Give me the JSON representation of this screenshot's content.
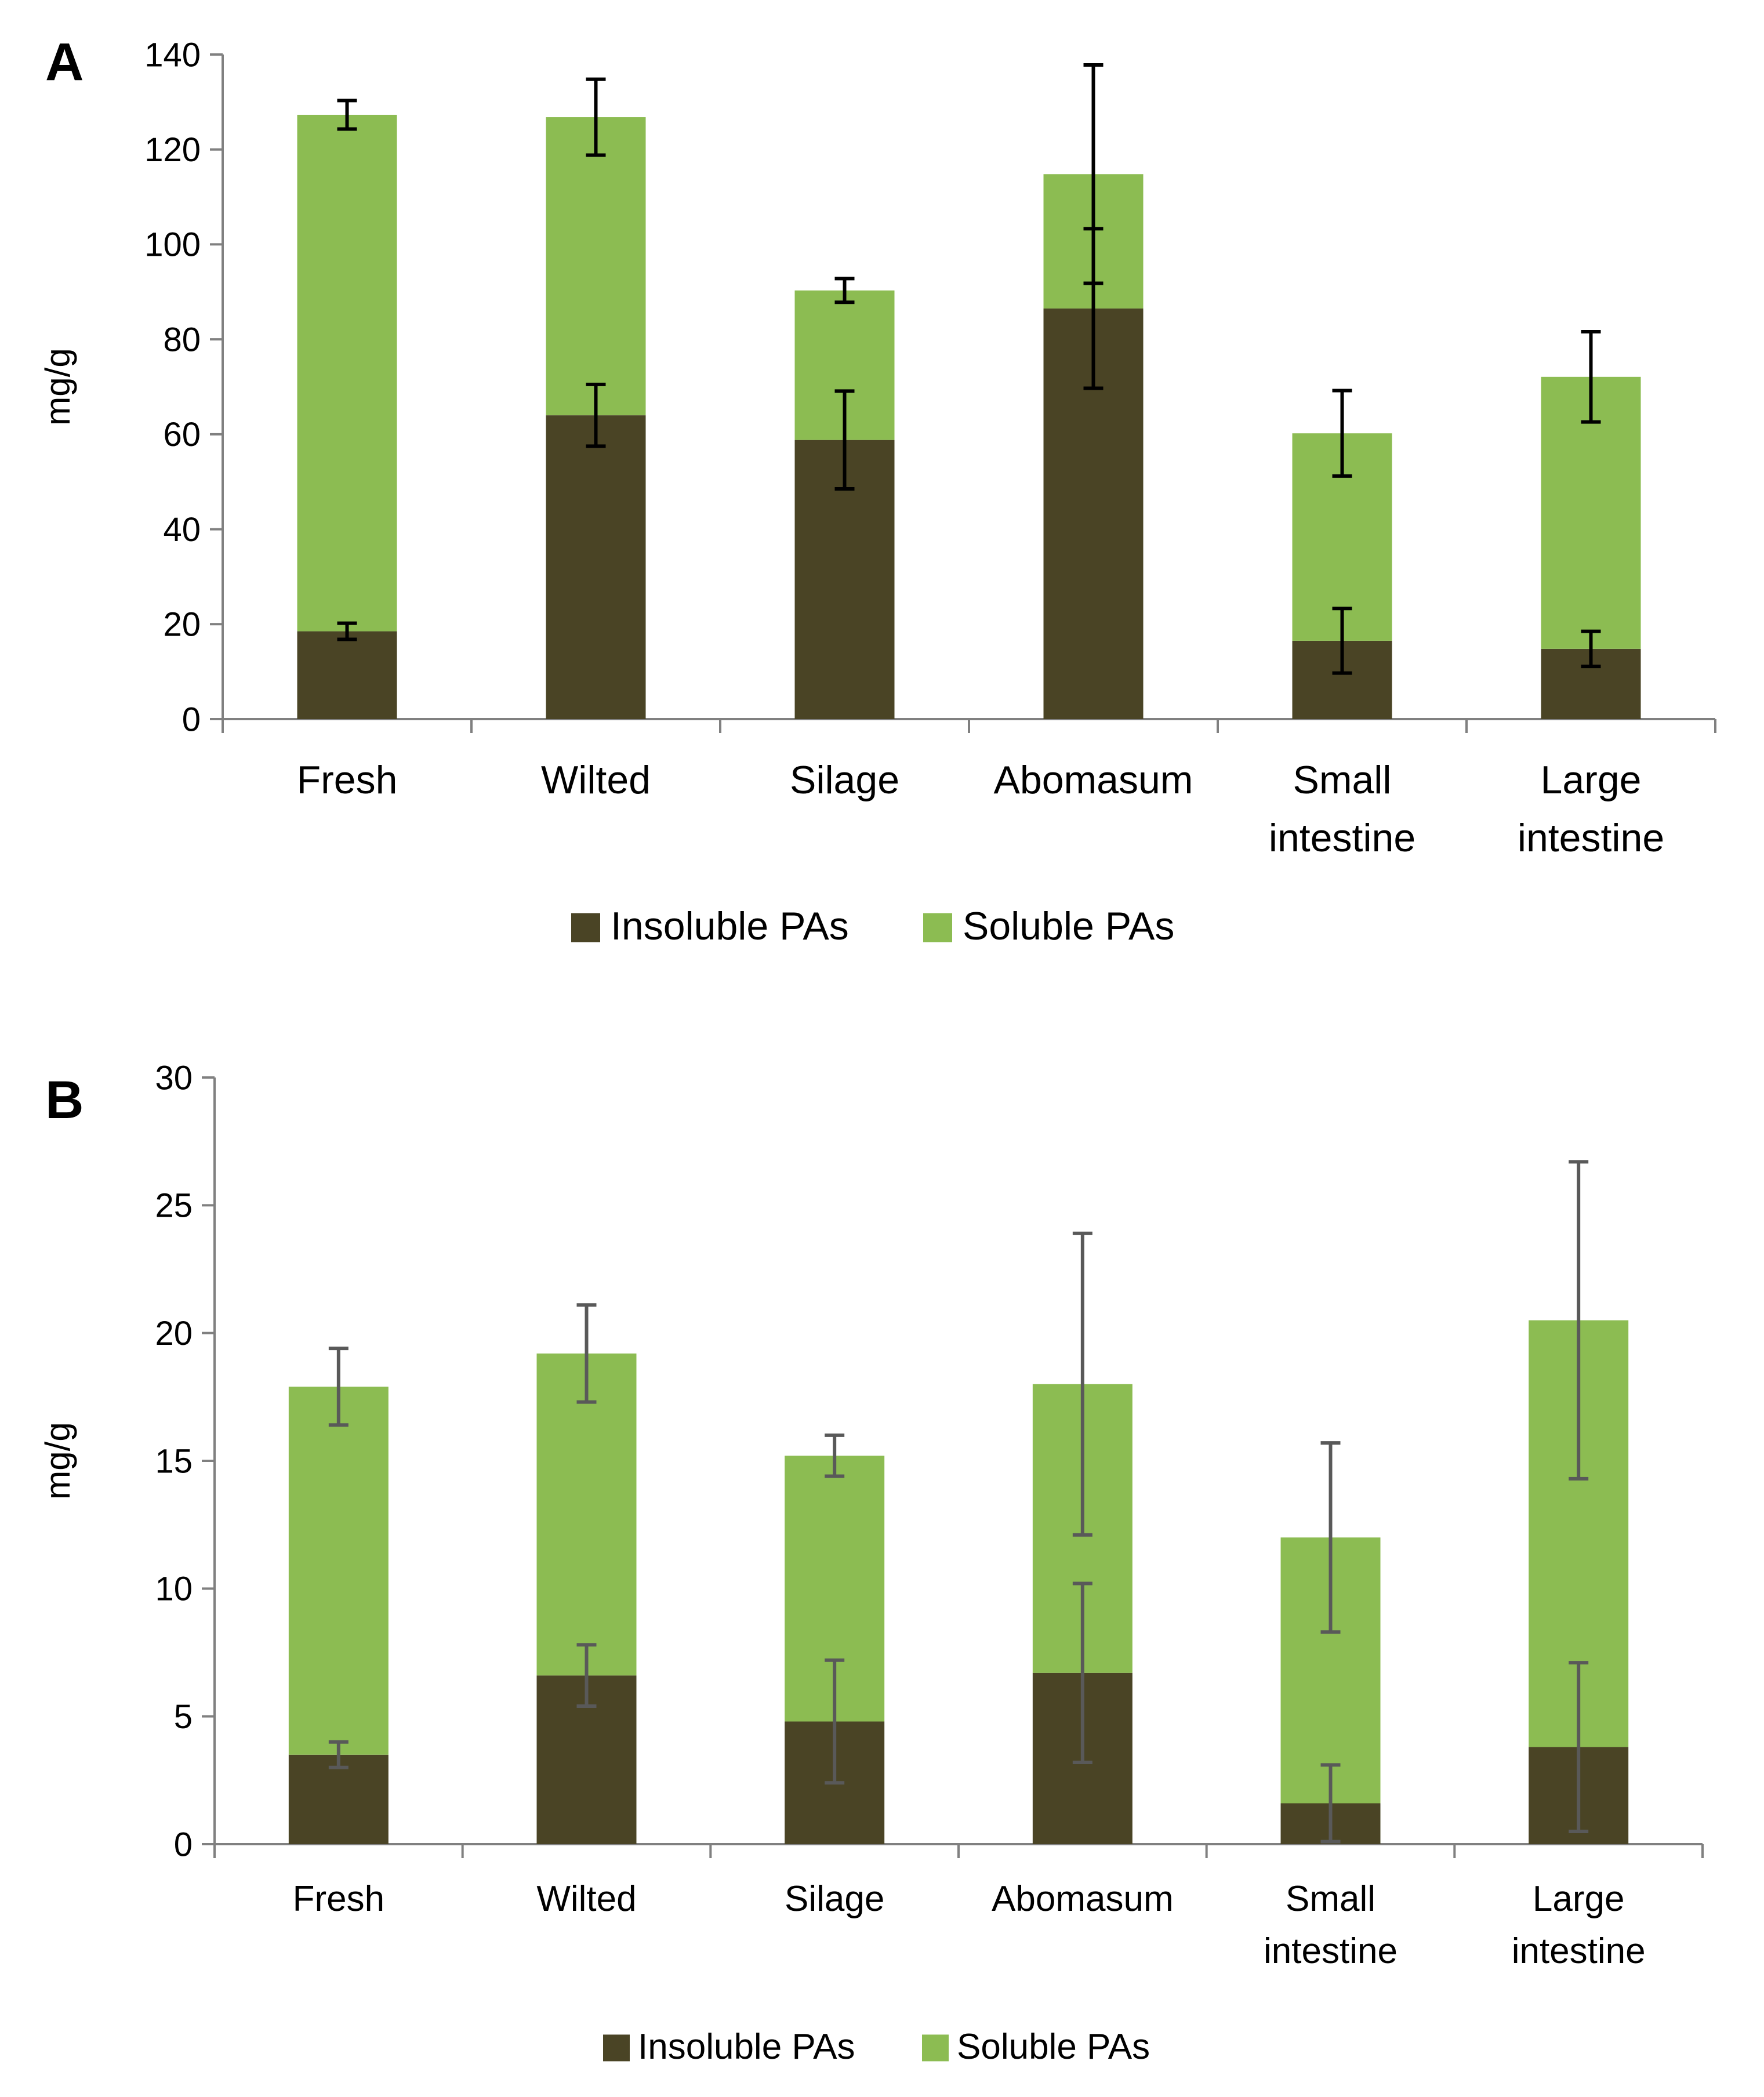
{
  "colors": {
    "insoluble": "#4a4425",
    "soluble": "#8cbc52",
    "axis": "#808080",
    "errorbar_a": "#000000",
    "errorbar_b": "#595959"
  },
  "chart_data": [
    {
      "type": "bar",
      "stacked": true,
      "panel_label": "A",
      "categories": [
        "Fresh",
        "Wilted",
        "Silage",
        "Abomasum",
        "Small intestine",
        "Large intestine"
      ],
      "category_lines": [
        [
          "Fresh"
        ],
        [
          "Wilted"
        ],
        [
          "Silage"
        ],
        [
          "Abomasum"
        ],
        [
          "Small",
          "intestine"
        ],
        [
          "Large",
          "intestine"
        ]
      ],
      "series": [
        {
          "name": "Insoluble PAs",
          "values": [
            18.5,
            64.0,
            58.8,
            86.5,
            16.5,
            14.8
          ],
          "errors": [
            1.7,
            6.5,
            10.3,
            16.8,
            6.8,
            3.7
          ]
        },
        {
          "name": "Soluble PAs",
          "values": [
            108.8,
            62.8,
            31.5,
            28.3,
            43.7,
            57.3
          ],
          "errors": [
            3.0,
            8.0,
            2.5,
            23.0,
            9.0,
            9.5
          ]
        }
      ],
      "xlabel": "",
      "ylabel": "mg/g",
      "ylim": [
        0,
        140
      ],
      "yticks": [
        0,
        20,
        40,
        60,
        80,
        100,
        120,
        140
      ],
      "grid": false,
      "legend": "bottom"
    },
    {
      "type": "bar",
      "stacked": true,
      "panel_label": "B",
      "categories": [
        "Fresh",
        "Wilted",
        "Silage",
        "Abomasum",
        "Small intestine",
        "Large intestine"
      ],
      "category_lines": [
        [
          "Fresh"
        ],
        [
          "Wilted"
        ],
        [
          "Silage"
        ],
        [
          "Abomasum"
        ],
        [
          "Small",
          "intestine"
        ],
        [
          "Large",
          "intestine"
        ]
      ],
      "series": [
        {
          "name": "Insoluble PAs",
          "values": [
            3.5,
            6.6,
            4.8,
            6.7,
            1.6,
            3.8
          ],
          "errors": [
            0.5,
            1.2,
            2.4,
            3.5,
            1.5,
            3.3
          ]
        },
        {
          "name": "Soluble PAs",
          "values": [
            14.4,
            12.6,
            10.4,
            11.3,
            10.4,
            16.7
          ],
          "errors": [
            1.5,
            1.9,
            0.8,
            5.9,
            3.7,
            6.2
          ]
        }
      ],
      "xlabel": "",
      "ylabel": "mg/g",
      "ylim": [
        0,
        30
      ],
      "yticks": [
        0,
        5,
        10,
        15,
        20,
        25,
        30
      ],
      "grid": false,
      "legend": "bottom"
    }
  ]
}
